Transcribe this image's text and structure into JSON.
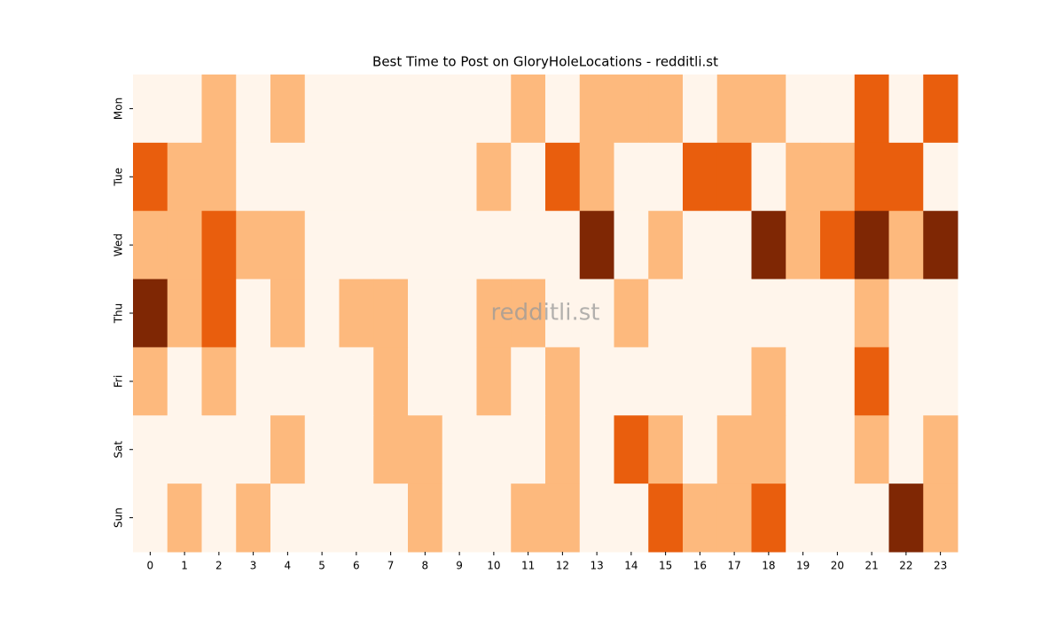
{
  "chart_data": {
    "type": "heatmap",
    "title": "Best Time to Post on GloryHoleLocations - redditli.st",
    "watermark": "redditli.st",
    "x": [
      "0",
      "1",
      "2",
      "3",
      "4",
      "5",
      "6",
      "7",
      "8",
      "9",
      "10",
      "11",
      "12",
      "13",
      "14",
      "15",
      "16",
      "17",
      "18",
      "19",
      "20",
      "21",
      "22",
      "23"
    ],
    "y": [
      "Mon",
      "Tue",
      "Wed",
      "Thu",
      "Fri",
      "Sat",
      "Sun"
    ],
    "colorscale": [
      "#fff5eb",
      "#fdb97d",
      "#e95e0d",
      "#7f2704"
    ],
    "values": [
      [
        0,
        0,
        1,
        0,
        1,
        0,
        0,
        0,
        0,
        0,
        0,
        1,
        0,
        1,
        1,
        1,
        0,
        1,
        1,
        0,
        0,
        2,
        0,
        2
      ],
      [
        2,
        1,
        1,
        0,
        0,
        0,
        0,
        0,
        0,
        0,
        1,
        0,
        2,
        1,
        0,
        0,
        2,
        2,
        0,
        1,
        1,
        2,
        2,
        0
      ],
      [
        1,
        1,
        2,
        1,
        1,
        0,
        0,
        0,
        0,
        0,
        0,
        0,
        0,
        3,
        0,
        1,
        0,
        0,
        3,
        1,
        2,
        3,
        1,
        3
      ],
      [
        3,
        1,
        2,
        0,
        1,
        0,
        1,
        1,
        0,
        0,
        1,
        1,
        0,
        0,
        1,
        0,
        0,
        0,
        0,
        0,
        0,
        1,
        0,
        0
      ],
      [
        1,
        0,
        1,
        0,
        0,
        0,
        0,
        1,
        0,
        0,
        1,
        0,
        1,
        0,
        0,
        0,
        0,
        0,
        1,
        0,
        0,
        2,
        0,
        0
      ],
      [
        0,
        0,
        0,
        0,
        1,
        0,
        0,
        1,
        1,
        0,
        0,
        0,
        1,
        0,
        2,
        1,
        0,
        1,
        1,
        0,
        0,
        1,
        0,
        1
      ],
      [
        0,
        1,
        0,
        1,
        0,
        0,
        0,
        0,
        1,
        0,
        0,
        1,
        1,
        0,
        0,
        2,
        1,
        1,
        2,
        0,
        0,
        0,
        3,
        1
      ]
    ]
  }
}
